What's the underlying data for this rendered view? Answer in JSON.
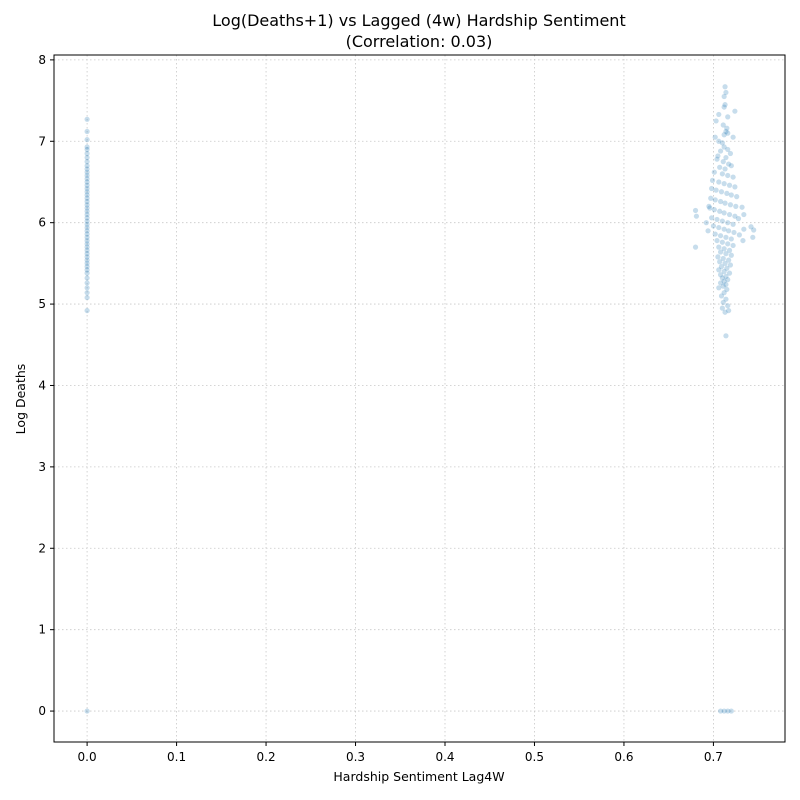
{
  "chart_data": {
    "type": "scatter",
    "title": "Log(Deaths+1) vs Lagged (4w) Hardship Sentiment",
    "subtitle": "(Correlation: 0.03)",
    "xlabel": "Hardship Sentiment Lag4W",
    "ylabel": "Log Deaths",
    "xlim": [
      -0.037,
      0.78
    ],
    "ylim": [
      -0.38,
      8.06
    ],
    "xticks": [
      0.0,
      0.1,
      0.2,
      0.3,
      0.4,
      0.5,
      0.6,
      0.7
    ],
    "xtick_labels": [
      "0.0",
      "0.1",
      "0.2",
      "0.3",
      "0.4",
      "0.5",
      "0.6",
      "0.7"
    ],
    "yticks": [
      0,
      1,
      2,
      3,
      4,
      5,
      6,
      7,
      8
    ],
    "ytick_labels": [
      "0",
      "1",
      "2",
      "3",
      "4",
      "5",
      "6",
      "7",
      "8"
    ],
    "grid": true,
    "marker_color": "#1f77b4",
    "marker_alpha": 0.25,
    "points": [
      [
        0.0,
        0.0
      ],
      [
        0.0,
        7.27
      ],
      [
        0.0,
        7.12
      ],
      [
        0.0,
        7.02
      ],
      [
        0.0,
        6.93
      ],
      [
        0.0,
        6.9
      ],
      [
        0.0,
        6.85
      ],
      [
        0.0,
        6.8
      ],
      [
        0.0,
        6.75
      ],
      [
        0.0,
        6.7
      ],
      [
        0.0,
        6.66
      ],
      [
        0.0,
        6.62
      ],
      [
        0.0,
        6.58
      ],
      [
        0.0,
        6.54
      ],
      [
        0.0,
        6.5
      ],
      [
        0.0,
        6.46
      ],
      [
        0.0,
        6.42
      ],
      [
        0.0,
        6.38
      ],
      [
        0.0,
        6.34
      ],
      [
        0.0,
        6.3
      ],
      [
        0.0,
        6.26
      ],
      [
        0.0,
        6.22
      ],
      [
        0.0,
        6.18
      ],
      [
        0.0,
        6.14
      ],
      [
        0.0,
        6.1
      ],
      [
        0.0,
        6.06
      ],
      [
        0.0,
        6.02
      ],
      [
        0.0,
        5.98
      ],
      [
        0.0,
        5.94
      ],
      [
        0.0,
        5.9
      ],
      [
        0.0,
        5.86
      ],
      [
        0.0,
        5.82
      ],
      [
        0.0,
        5.78
      ],
      [
        0.0,
        5.74
      ],
      [
        0.0,
        5.7
      ],
      [
        0.0,
        5.66
      ],
      [
        0.0,
        5.62
      ],
      [
        0.0,
        5.58
      ],
      [
        0.0,
        5.54
      ],
      [
        0.0,
        5.5
      ],
      [
        0.0,
        5.46
      ],
      [
        0.0,
        5.42
      ],
      [
        0.0,
        5.38
      ],
      [
        0.0,
        5.32
      ],
      [
        0.0,
        5.26
      ],
      [
        0.0,
        5.2
      ],
      [
        0.0,
        5.14
      ],
      [
        0.0,
        5.08
      ],
      [
        0.0,
        4.92
      ],
      [
        0.708,
        0.0
      ],
      [
        0.712,
        0.0
      ],
      [
        0.716,
        0.0
      ],
      [
        0.72,
        0.0
      ],
      [
        0.713,
        7.67
      ],
      [
        0.714,
        7.6
      ],
      [
        0.712,
        7.55
      ],
      [
        0.713,
        7.45
      ],
      [
        0.712,
        7.42
      ],
      [
        0.724,
        7.37
      ],
      [
        0.706,
        7.33
      ],
      [
        0.716,
        7.3
      ],
      [
        0.703,
        7.25
      ],
      [
        0.711,
        7.2
      ],
      [
        0.715,
        7.16
      ],
      [
        0.714,
        7.12
      ],
      [
        0.716,
        7.1
      ],
      [
        0.712,
        7.08
      ],
      [
        0.702,
        7.05
      ],
      [
        0.722,
        7.05
      ],
      [
        0.706,
        7.0
      ],
      [
        0.71,
        6.98
      ],
      [
        0.712,
        6.93
      ],
      [
        0.716,
        6.9
      ],
      [
        0.708,
        6.88
      ],
      [
        0.719,
        6.85
      ],
      [
        0.705,
        6.82
      ],
      [
        0.714,
        6.8
      ],
      [
        0.704,
        6.78
      ],
      [
        0.711,
        6.75
      ],
      [
        0.717,
        6.72
      ],
      [
        0.72,
        6.7
      ],
      [
        0.707,
        6.68
      ],
      [
        0.713,
        6.66
      ],
      [
        0.701,
        6.62
      ],
      [
        0.71,
        6.6
      ],
      [
        0.716,
        6.58
      ],
      [
        0.722,
        6.56
      ],
      [
        0.699,
        6.52
      ],
      [
        0.706,
        6.5
      ],
      [
        0.712,
        6.48
      ],
      [
        0.718,
        6.46
      ],
      [
        0.724,
        6.44
      ],
      [
        0.698,
        6.42
      ],
      [
        0.703,
        6.4
      ],
      [
        0.709,
        6.38
      ],
      [
        0.715,
        6.36
      ],
      [
        0.72,
        6.34
      ],
      [
        0.726,
        6.32
      ],
      [
        0.697,
        6.3
      ],
      [
        0.702,
        6.28
      ],
      [
        0.708,
        6.26
      ],
      [
        0.713,
        6.24
      ],
      [
        0.719,
        6.22
      ],
      [
        0.725,
        6.2
      ],
      [
        0.696,
        6.18
      ],
      [
        0.701,
        6.16
      ],
      [
        0.707,
        6.14
      ],
      [
        0.712,
        6.12
      ],
      [
        0.718,
        6.1
      ],
      [
        0.724,
        6.08
      ],
      [
        0.698,
        6.06
      ],
      [
        0.704,
        6.04
      ],
      [
        0.71,
        6.02
      ],
      [
        0.716,
        6.0
      ],
      [
        0.722,
        5.98
      ],
      [
        0.7,
        5.96
      ],
      [
        0.706,
        5.94
      ],
      [
        0.712,
        5.92
      ],
      [
        0.717,
        5.9
      ],
      [
        0.723,
        5.88
      ],
      [
        0.702,
        5.86
      ],
      [
        0.708,
        5.84
      ],
      [
        0.714,
        5.82
      ],
      [
        0.72,
        5.8
      ],
      [
        0.704,
        5.78
      ],
      [
        0.71,
        5.76
      ],
      [
        0.716,
        5.74
      ],
      [
        0.722,
        5.72
      ],
      [
        0.706,
        5.7
      ],
      [
        0.712,
        5.68
      ],
      [
        0.718,
        5.66
      ],
      [
        0.708,
        5.64
      ],
      [
        0.714,
        5.62
      ],
      [
        0.72,
        5.6
      ],
      [
        0.705,
        5.58
      ],
      [
        0.711,
        5.56
      ],
      [
        0.717,
        5.54
      ],
      [
        0.707,
        5.52
      ],
      [
        0.713,
        5.5
      ],
      [
        0.719,
        5.48
      ],
      [
        0.709,
        5.46
      ],
      [
        0.715,
        5.44
      ],
      [
        0.706,
        5.42
      ],
      [
        0.712,
        5.4
      ],
      [
        0.718,
        5.38
      ],
      [
        0.708,
        5.36
      ],
      [
        0.714,
        5.34
      ],
      [
        0.71,
        5.32
      ],
      [
        0.716,
        5.3
      ],
      [
        0.712,
        5.28
      ],
      [
        0.708,
        5.26
      ],
      [
        0.714,
        5.24
      ],
      [
        0.711,
        5.22
      ],
      [
        0.706,
        5.2
      ],
      [
        0.715,
        5.18
      ],
      [
        0.712,
        5.14
      ],
      [
        0.709,
        5.1
      ],
      [
        0.714,
        5.06
      ],
      [
        0.711,
        5.02
      ],
      [
        0.716,
        4.98
      ],
      [
        0.71,
        4.95
      ],
      [
        0.713,
        4.9
      ],
      [
        0.717,
        4.92
      ],
      [
        0.714,
        4.61
      ],
      [
        0.68,
        6.15
      ],
      [
        0.681,
        6.08
      ],
      [
        0.68,
        5.7
      ],
      [
        0.732,
        6.19
      ],
      [
        0.734,
        6.1
      ],
      [
        0.734,
        5.92
      ],
      [
        0.733,
        5.78
      ],
      [
        0.742,
        5.95
      ],
      [
        0.745,
        5.91
      ],
      [
        0.744,
        5.82
      ],
      [
        0.728,
        6.05
      ],
      [
        0.729,
        5.85
      ],
      [
        0.692,
        6.0
      ],
      [
        0.695,
        6.2
      ],
      [
        0.694,
        5.9
      ]
    ]
  }
}
